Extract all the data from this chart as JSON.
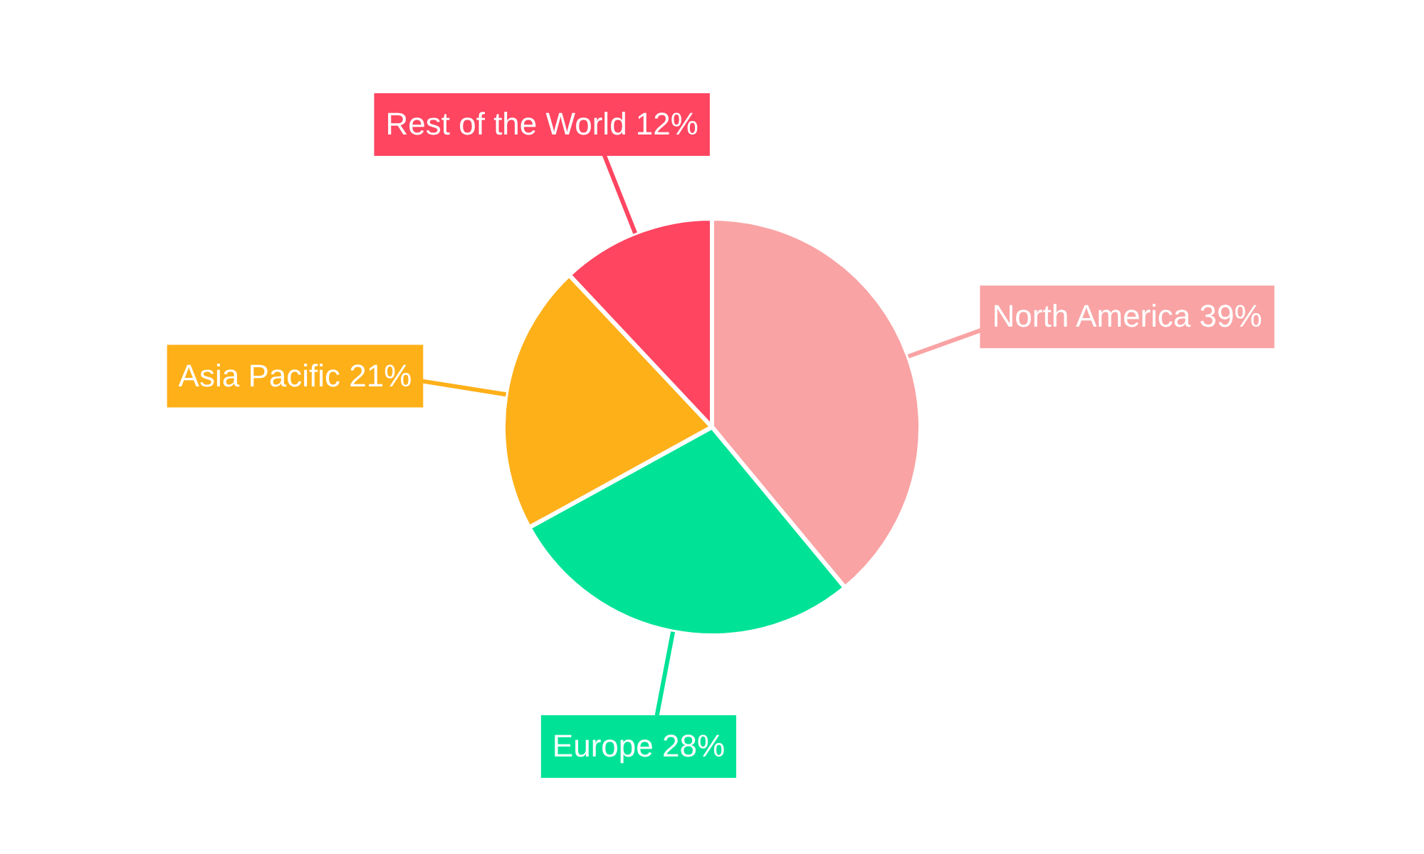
{
  "chart_data": {
    "type": "pie",
    "categories": [
      "North America",
      "Europe",
      "Asia Pacific",
      "Rest of the World"
    ],
    "values": [
      39,
      28,
      21,
      12
    ],
    "value_labels": [
      "39%",
      "28%",
      "21%",
      "12%"
    ],
    "colors": [
      "#f9a3a4",
      "#00e396",
      "#feb019",
      "#ff4560"
    ],
    "legend": false
  }
}
